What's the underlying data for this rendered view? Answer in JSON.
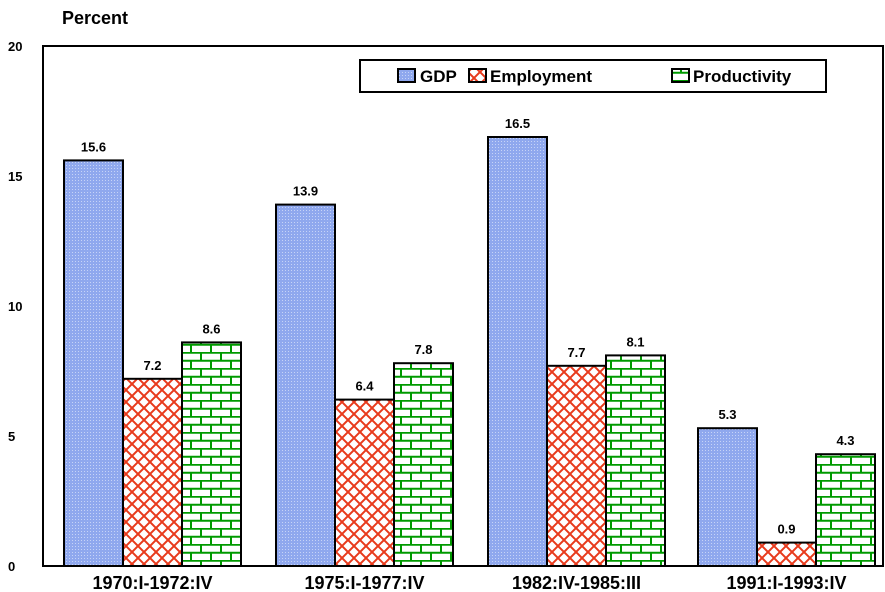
{
  "chart_data": {
    "type": "bar",
    "ylabel": "Percent",
    "ylim": [
      0,
      20
    ],
    "yticks": [
      0,
      5,
      10,
      15,
      20
    ],
    "categories": [
      "1970:I-1972:IV",
      "1975:I-1977:IV",
      "1982:IV-1985:III",
      "1991:I-1993:IV"
    ],
    "series": [
      {
        "name": "GDP",
        "values": [
          15.6,
          13.9,
          16.5,
          5.3
        ],
        "color": "#8fa8ee",
        "pattern": "dotted"
      },
      {
        "name": "Employment",
        "values": [
          7.2,
          6.4,
          7.7,
          0.9
        ],
        "color": "#e83a1c",
        "pattern": "diagonal-hatch"
      },
      {
        "name": "Productivity",
        "values": [
          8.6,
          7.8,
          8.1,
          4.3
        ],
        "color": "#009a00",
        "pattern": "brick"
      }
    ],
    "data_labels": [
      [
        "15.6",
        "13.9",
        "16.5",
        "5.3"
      ],
      [
        "7.2",
        "6.4",
        "7.7",
        "0.9"
      ],
      [
        "8.6",
        "7.8",
        "8.1",
        "4.3"
      ]
    ],
    "legend_position": "top-right",
    "grid": false
  }
}
